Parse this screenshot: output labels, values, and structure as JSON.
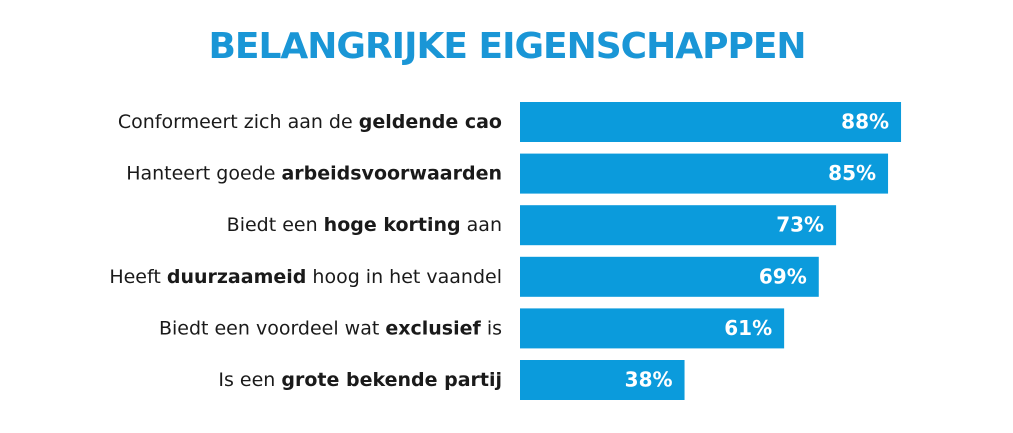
{
  "chart_data": {
    "type": "bar",
    "orientation": "horizontal",
    "title": "BELANGRIJKE EIGENSCHAPPEN",
    "categories": [
      [
        "Conformeert zich aan de ",
        "geldende cao"
      ],
      [
        "Hanteert goede ",
        "arbeidsvoorwaarden"
      ],
      [
        "Biedt een ",
        "hoge korting",
        " aan"
      ],
      [
        "Heeft ",
        "duurzaameid",
        " hoog in het vaandel"
      ],
      [
        "Biedt een voordeel wat ",
        "exclusief",
        " is"
      ],
      [
        "Is een ",
        "grote bekende partij"
      ]
    ],
    "values": [
      88,
      85,
      73,
      69,
      61,
      38
    ],
    "value_labels": [
      "88%",
      "85%",
      "73%",
      "69%",
      "61%",
      "38%"
    ],
    "color": "#0b9bdc",
    "xlim": [
      0,
      100
    ]
  }
}
